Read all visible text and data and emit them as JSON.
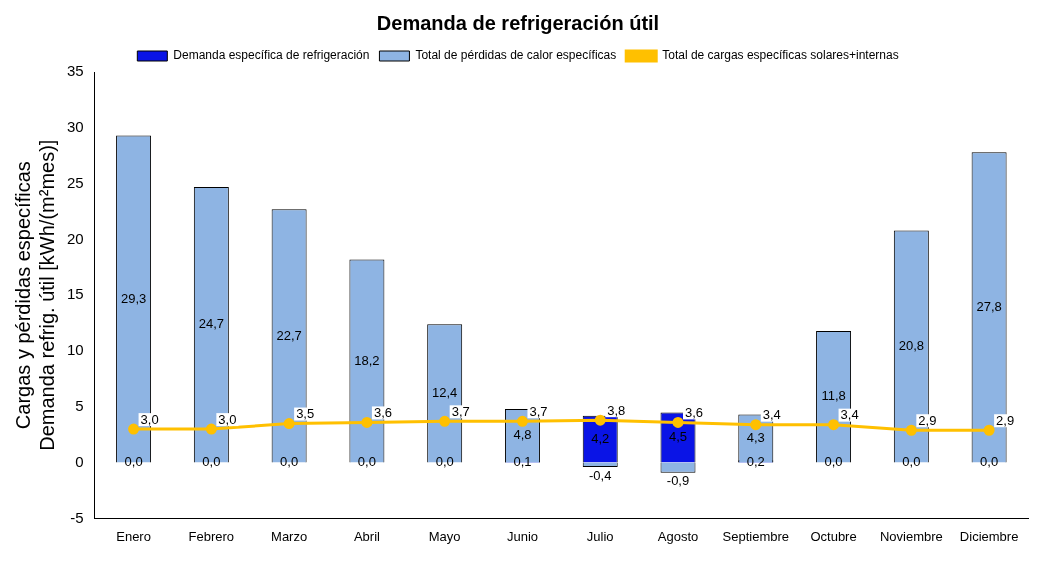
{
  "chart_data": {
    "type": "bar",
    "title": "Demanda de refrigeración útil",
    "ylabel": "Cargas y pérdidas específicas\nDemanda refrig. útil [kWh/(m²mes)]",
    "categories": [
      "Enero",
      "Febrero",
      "Marzo",
      "Abril",
      "Mayo",
      "Junio",
      "Julio",
      "Agosto",
      "Septiembre",
      "Octubre",
      "Noviembre",
      "Diciembre"
    ],
    "series": [
      {
        "name": "Demanda específica de refrigeración",
        "color": "#0a14e6",
        "values": [
          0,
          0,
          0,
          0,
          0,
          0.1,
          4.2,
          4.5,
          0.2,
          0,
          0,
          0
        ],
        "value_labels": [
          "0,0",
          "0,0",
          "0,0",
          "0,0",
          "0,0",
          "0,1",
          "4,2",
          "4,5",
          "0,2",
          "0,0",
          "0,0",
          "0,0"
        ]
      },
      {
        "name": "Total de pérdidas de calor específicas",
        "color": "#8eb4e3",
        "values": [
          29.3,
          24.7,
          22.7,
          18.2,
          12.4,
          4.8,
          -0.4,
          -0.9,
          4.3,
          11.8,
          20.8,
          27.8
        ],
        "value_labels": [
          "29,3",
          "24,7",
          "22,7",
          "18,2",
          "12,4",
          "4,8",
          "-0,4",
          "-0,9",
          "4,3",
          "11,8",
          "20,8",
          "27,8"
        ]
      },
      {
        "name": "Total de cargas específicas solares+internas",
        "type": "line",
        "color": "#ffc000",
        "values": [
          3.0,
          3.0,
          3.5,
          3.6,
          3.7,
          3.7,
          3.8,
          3.6,
          3.4,
          3.4,
          2.9,
          2.9
        ],
        "value_labels": [
          "3,0",
          "3,0",
          "3,5",
          "3,6",
          "3,7",
          "3,7",
          "3,8",
          "3,6",
          "3,4",
          "3,4",
          "2,9",
          "2,9"
        ]
      }
    ],
    "ylim": [
      -5,
      35
    ],
    "yticks": [
      -5,
      0,
      5,
      10,
      15,
      20,
      25,
      30,
      35
    ],
    "grid": false,
    "legend": "top",
    "marker": "circle"
  }
}
